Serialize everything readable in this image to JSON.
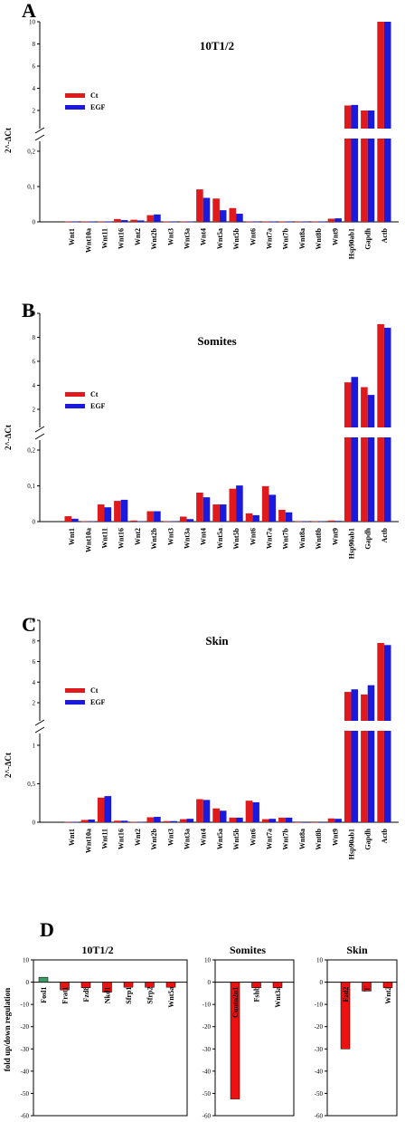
{
  "colors": {
    "ct": "#e0191d",
    "egf": "#1a1adf",
    "up": "#3f9a64",
    "down": "#ee1111"
  },
  "chart_data": [
    {
      "type": "bar",
      "panel": "A",
      "title": "10T1/2",
      "ylabel": "2^-ΔCt",
      "categories": [
        "Wnt1",
        "Wnt10a",
        "Wnt11",
        "Wnt16",
        "Wnt2",
        "Wnt2b",
        "Wnt3",
        "Wnt3a",
        "Wnt4",
        "Wnt5a",
        "Wnt5b",
        "Wnt6",
        "Wnt7a",
        "Wnt7b",
        "Wnt8a",
        "Wnt8b",
        "Wnt9",
        "Hsp90ab1",
        "Gapdh",
        "Actb"
      ],
      "legend": [
        "Ct",
        "EGF"
      ],
      "series": [
        {
          "name": "Ct",
          "values": [
            0.001,
            0.001,
            0.001,
            0.008,
            0.006,
            0.019,
            0.001,
            0.001,
            0.092,
            0.066,
            0.039,
            0.001,
            0.001,
            0.001,
            0.001,
            0.001,
            0.009,
            2.45,
            1.65,
            10.0
          ]
        },
        {
          "name": "EGF",
          "values": [
            0.001,
            0.001,
            0.001,
            0.005,
            0.004,
            0.021,
            0.001,
            0.001,
            0.068,
            0.033,
            0.023,
            0.001,
            0.001,
            0.001,
            0.001,
            0.001,
            0.01,
            2.5,
            1.95,
            10.0
          ]
        }
      ],
      "lower_axis": {
        "ticks": [
          "0",
          "0,1",
          "0,2"
        ],
        "ylim": [
          0,
          0.2
        ]
      },
      "upper_axis": {
        "ticks": [
          "2",
          "4",
          "6",
          "8",
          "10"
        ],
        "ylim": [
          2,
          10
        ]
      }
    },
    {
      "type": "bar",
      "panel": "B",
      "title": "Somites",
      "ylabel": "2^-ΔCt",
      "categories": [
        "Wnt1",
        "Wnt10a",
        "Wnt11",
        "Wnt16",
        "Wnt2",
        "Wnt2b",
        "Wnt3",
        "Wnt3a",
        "Wnt4",
        "Wnt5a",
        "Wnt5b",
        "Wnt6",
        "Wnt7a",
        "Wnt7b",
        "Wnt8a",
        "Wnt8b",
        "Wnt9",
        "Hsp90ab1",
        "Gapdh",
        "Actb"
      ],
      "legend": [
        "Ct",
        "EGF"
      ],
      "series": [
        {
          "name": "Ct",
          "values": [
            0.015,
            0.001,
            0.048,
            0.058,
            0.003,
            0.029,
            0.001,
            0.014,
            0.081,
            0.048,
            0.092,
            0.023,
            0.099,
            0.033,
            0.001,
            0.001,
            0.003,
            4.25,
            3.85,
            9.1
          ]
        },
        {
          "name": "EGF",
          "values": [
            0.008,
            0.001,
            0.04,
            0.061,
            0.001,
            0.029,
            0.001,
            0.007,
            0.068,
            0.048,
            0.101,
            0.018,
            0.075,
            0.026,
            0.001,
            0.001,
            0.002,
            4.7,
            3.2,
            8.8
          ]
        }
      ],
      "lower_axis": {
        "ticks": [
          "0",
          "0,1",
          "0,2"
        ],
        "ylim": [
          0,
          0.2
        ]
      },
      "upper_axis": {
        "ticks": [
          "2",
          "4",
          "6",
          "8",
          "10"
        ],
        "ylim": [
          2,
          10
        ]
      }
    },
    {
      "type": "bar",
      "panel": "C",
      "title": "Skin",
      "ylabel": "2^-ΔCt",
      "categories": [
        "Wnt1",
        "Wnt10a",
        "Wnt11",
        "Wnt16",
        "Wnt2",
        "Wnt2b",
        "Wnt3",
        "Wnt3a",
        "Wnt4",
        "Wnt5a",
        "Wnt5b",
        "Wnt6",
        "Wnt7a",
        "Wnt7b",
        "Wnt8a",
        "Wnt8b",
        "Wnt9",
        "Hsp90ab1",
        "Gapdh",
        "Actb"
      ],
      "legend": [
        "Ct",
        "EGF"
      ],
      "series": [
        {
          "name": "Ct",
          "values": [
            0.005,
            0.03,
            0.32,
            0.02,
            0.005,
            0.065,
            0.015,
            0.04,
            0.3,
            0.18,
            0.06,
            0.28,
            0.04,
            0.06,
            0.0,
            0.0,
            0.05,
            3.05,
            2.8,
            7.8
          ]
        },
        {
          "name": "EGF",
          "values": [
            0.005,
            0.035,
            0.34,
            0.02,
            0.003,
            0.07,
            0.015,
            0.045,
            0.29,
            0.15,
            0.06,
            0.26,
            0.045,
            0.06,
            0.0,
            0.0,
            0.045,
            3.3,
            3.7,
            7.6
          ]
        }
      ],
      "lower_axis": {
        "ticks": [
          "0",
          "0,5",
          "1"
        ],
        "ylim": [
          0,
          1
        ]
      },
      "upper_axis": {
        "ticks": [
          "2",
          "4",
          "6",
          "8",
          "10"
        ],
        "ylim": [
          2,
          10
        ]
      }
    },
    {
      "type": "bar",
      "panel": "D",
      "ylabel": "fold up/down regulation",
      "ylim": [
        -60,
        10
      ],
      "yticks": [
        "10",
        "0",
        "-10",
        "-20",
        "-30",
        "-40",
        "-50",
        "-60"
      ],
      "subplots": [
        {
          "title": "10T1/2",
          "categories": [
            "Fosl1",
            "Frat1",
            "Fzd8",
            "Nkd1",
            "Sfrp1",
            "Sfrp2",
            "Wnt5a"
          ],
          "values": [
            2.2,
            -3.5,
            -2.5,
            -4.5,
            -2.3,
            -2.3,
            -2.3
          ]
        },
        {
          "title": "Somites",
          "categories": [
            "Cuntn2n1",
            "Fshb",
            "Wnt3a"
          ],
          "values": [
            -52.5,
            -2.5,
            -2.5
          ]
        },
        {
          "title": "Skin",
          "categories": [
            "Fzd2",
            "T",
            "Wnt2"
          ],
          "values": [
            -30,
            -4,
            -2.5
          ]
        }
      ]
    }
  ]
}
